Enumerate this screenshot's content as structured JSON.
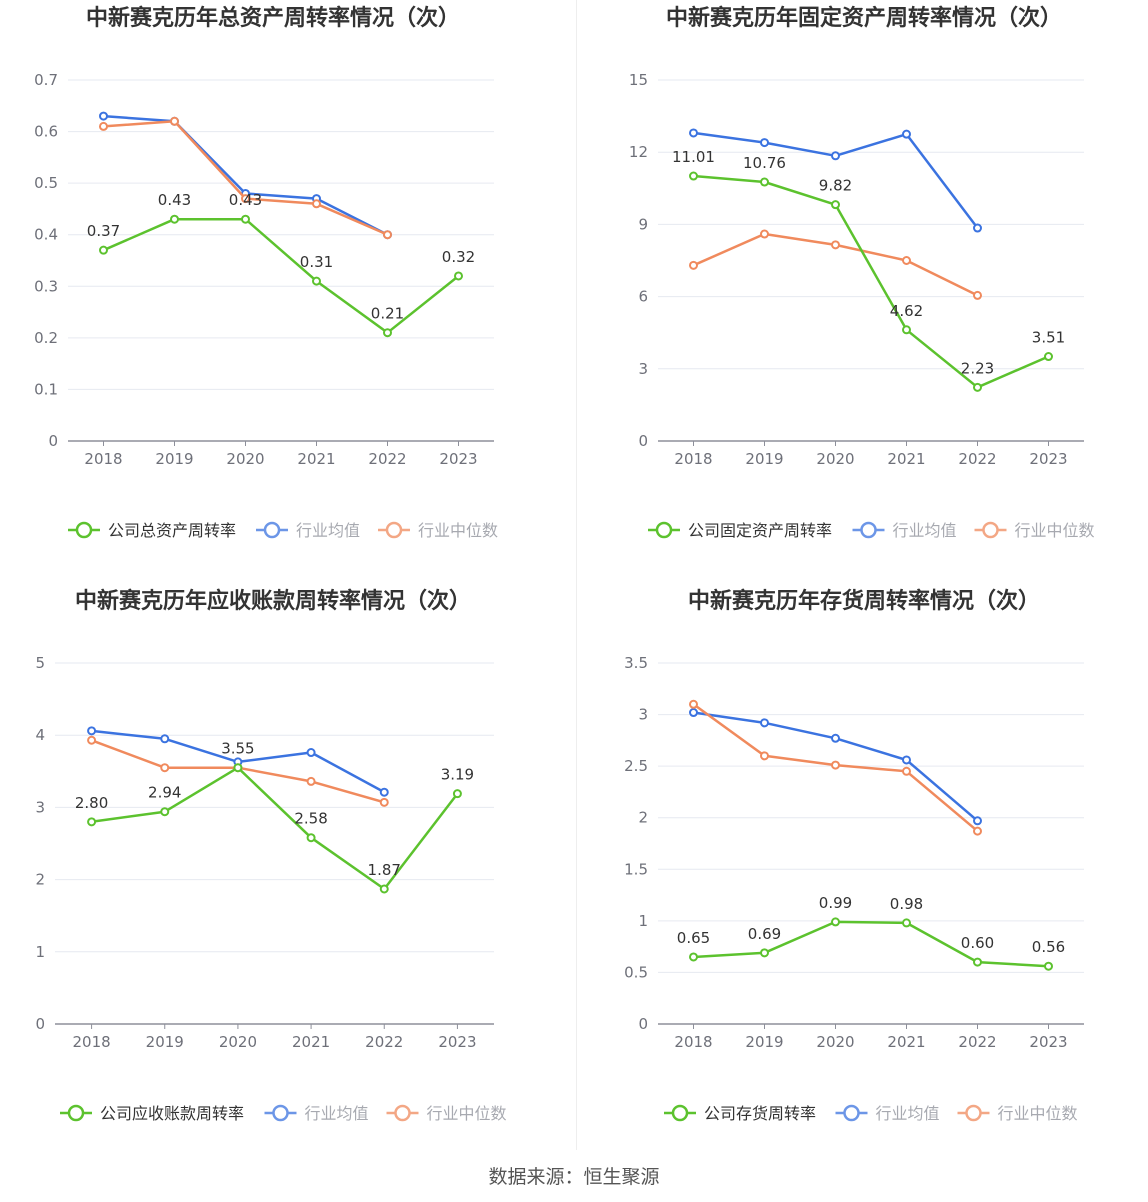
{
  "source": "数据来源：恒生聚源",
  "colors": {
    "company": "#5cc22e",
    "avg": "#3b73e0",
    "median": "#f08a5d",
    "grid": "#e6e9f0",
    "axis": "#8d8f9a"
  },
  "legend_labels": {
    "avg": "行业均值",
    "median": "行业中位数"
  },
  "chart_data": [
    {
      "type": "line",
      "title": "中新赛克历年总资产周转率情况（次）",
      "categories": [
        "2018",
        "2019",
        "2020",
        "2021",
        "2022",
        "2023"
      ],
      "yticks": [
        "0",
        "0.1",
        "0.2",
        "0.3",
        "0.4",
        "0.5",
        "0.6",
        "0.7"
      ],
      "ylim": [
        0,
        0.7
      ],
      "series": [
        {
          "name": "公司总资产周转率",
          "key": "company",
          "values": [
            0.37,
            0.43,
            0.43,
            0.31,
            0.21,
            0.32
          ],
          "labels": [
            "0.37",
            "0.43",
            "0.43",
            "0.31",
            "0.21",
            "0.32"
          ]
        },
        {
          "name": "行业均值",
          "key": "avg",
          "values": [
            0.63,
            0.62,
            0.48,
            0.47,
            0.4,
            null
          ]
        },
        {
          "name": "行业中位数",
          "key": "median",
          "values": [
            0.61,
            0.62,
            0.47,
            0.46,
            0.4,
            null
          ]
        }
      ]
    },
    {
      "type": "line",
      "title": "中新赛克历年固定资产周转率情况（次）",
      "categories": [
        "2018",
        "2019",
        "2020",
        "2021",
        "2022",
        "2023"
      ],
      "yticks": [
        "0",
        "3",
        "6",
        "9",
        "12",
        "15"
      ],
      "ylim": [
        0,
        15
      ],
      "series": [
        {
          "name": "公司固定资产周转率",
          "key": "company",
          "values": [
            11.01,
            10.76,
            9.82,
            4.62,
            2.23,
            3.51
          ],
          "labels": [
            "11.01",
            "10.76",
            "9.82",
            "4.62",
            "2.23",
            "3.51"
          ]
        },
        {
          "name": "行业均值",
          "key": "avg",
          "values": [
            12.8,
            12.4,
            11.85,
            12.75,
            8.85,
            null
          ]
        },
        {
          "name": "行业中位数",
          "key": "median",
          "values": [
            7.3,
            8.6,
            8.15,
            7.5,
            6.05,
            null
          ]
        }
      ]
    },
    {
      "type": "line",
      "title": "中新赛克历年应收账款周转率情况（次）",
      "categories": [
        "2018",
        "2019",
        "2020",
        "2021",
        "2022",
        "2023"
      ],
      "yticks": [
        "0",
        "1",
        "2",
        "3",
        "4",
        "5"
      ],
      "ylim": [
        0,
        5
      ],
      "series": [
        {
          "name": "公司应收账款周转率",
          "key": "company",
          "values": [
            2.8,
            2.94,
            3.55,
            2.58,
            1.87,
            3.19
          ],
          "labels": [
            "2.80",
            "2.94",
            "3.55",
            "2.58",
            "1.87",
            "3.19"
          ]
        },
        {
          "name": "行业均值",
          "key": "avg",
          "values": [
            4.06,
            3.95,
            3.63,
            3.76,
            3.21,
            null
          ]
        },
        {
          "name": "行业中位数",
          "key": "median",
          "values": [
            3.93,
            3.55,
            3.55,
            3.36,
            3.07,
            null
          ]
        }
      ]
    },
    {
      "type": "line",
      "title": "中新赛克历年存货周转率情况（次）",
      "categories": [
        "2018",
        "2019",
        "2020",
        "2021",
        "2022",
        "2023"
      ],
      "yticks": [
        "0",
        "0.5",
        "1",
        "1.5",
        "2",
        "2.5",
        "3",
        "3.5"
      ],
      "ylim": [
        0,
        3.5
      ],
      "series": [
        {
          "name": "公司存货周转率",
          "key": "company",
          "values": [
            0.65,
            0.69,
            0.99,
            0.98,
            0.6,
            0.56
          ],
          "labels": [
            "0.65",
            "0.69",
            "0.99",
            "0.98",
            "0.60",
            "0.56"
          ]
        },
        {
          "name": "行业均值",
          "key": "avg",
          "values": [
            3.02,
            2.92,
            2.77,
            2.56,
            1.97,
            null
          ]
        },
        {
          "name": "行业中位数",
          "key": "median",
          "values": [
            3.1,
            2.6,
            2.51,
            2.45,
            1.87,
            null
          ]
        }
      ]
    }
  ]
}
